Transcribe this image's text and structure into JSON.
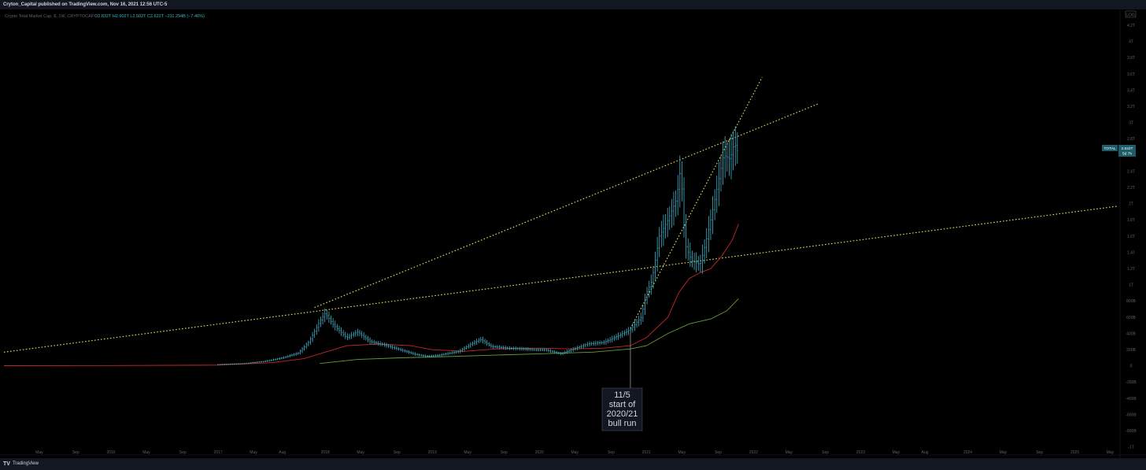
{
  "header": {
    "published": "Cryton_Capital published on TradingView.com, Nov 16, 2021 12:56 UTC-5"
  },
  "legend": {
    "symbol": "Crypto Total Market Cap, $, 1W, CRYPTOCAP",
    "ohlc": "O2.832T  H2.902T  L2.502T  C2.622T  −211.294B (−7.46%)"
  },
  "scale_mode": "LOG",
  "price_badge": {
    "symbol": "TOTAL",
    "price": "2.622T",
    "countdown": "5d 7h"
  },
  "annotation": {
    "lines": [
      "11/5",
      "start of",
      "2020/21",
      "bull run"
    ]
  },
  "footer": {
    "brand": "TradingView",
    "logo_glyph": "TV"
  },
  "colors": {
    "background": "#000000",
    "bar": "#3fb2c9",
    "ma_red": "#c62828",
    "ma_green": "#6b9b37",
    "trendline": "#e7e35a",
    "axis_text": "#5d606b"
  },
  "chart_data": {
    "type": "line",
    "title": "Crypto Total Market Cap, $, 1W, CRYPTOCAP",
    "y_tick_labels": [
      "4.2T",
      "4T",
      "3.8T",
      "3.6T",
      "3.4T",
      "3.2T",
      "3T",
      "2.8T",
      "2.6T",
      "2.4T",
      "2.2T",
      "2T",
      "1.8T",
      "1.6T",
      "1.4T",
      "1.2T",
      "1T",
      "800B",
      "600B",
      "400B",
      "200B",
      "0",
      "-200B",
      "-400B",
      "-600B",
      "-800B",
      "-1T"
    ],
    "y_ticks": [
      4.2,
      4.0,
      3.8,
      3.6,
      3.4,
      3.2,
      3.0,
      2.8,
      2.6,
      2.4,
      2.2,
      2.0,
      1.8,
      1.6,
      1.4,
      1.2,
      1.0,
      0.8,
      0.6,
      0.4,
      0.2,
      0,
      -0.2,
      -0.4,
      -0.6,
      -0.8,
      -1.0
    ],
    "ylim": [
      -1.05,
      4.25
    ],
    "x_tick_labels": [
      "May",
      "Sep",
      "2016",
      "May",
      "Sep",
      "2017",
      "May",
      "Aug",
      "2018",
      "May",
      "Sep",
      "2019",
      "May",
      "Sep",
      "2020",
      "May",
      "Sep",
      "2021",
      "May",
      "Sep",
      "2022",
      "May",
      "Sep",
      "2023",
      "May",
      "Aug",
      "2024",
      "May",
      "Sep",
      "2025",
      "May"
    ],
    "x_ticks": [
      2015.33,
      2015.67,
      2016.0,
      2016.33,
      2016.67,
      2017.0,
      2017.33,
      2017.6,
      2018.0,
      2018.33,
      2018.67,
      2019.0,
      2019.33,
      2019.67,
      2020.0,
      2020.33,
      2020.67,
      2021.0,
      2021.33,
      2021.67,
      2022.0,
      2022.33,
      2022.67,
      2023.0,
      2023.33,
      2023.6,
      2024.0,
      2024.33,
      2024.67,
      2025.0,
      2025.33
    ],
    "xlim": [
      2015.0,
      2025.4
    ],
    "series": [
      {
        "role": "price-close",
        "x": [
          2015.0,
          2016.0,
          2016.5,
          2017.0,
          2017.25,
          2017.45,
          2017.6,
          2017.75,
          2017.85,
          2017.95,
          2018.0,
          2018.08,
          2018.2,
          2018.3,
          2018.42,
          2018.55,
          2018.7,
          2018.85,
          2018.95,
          2019.05,
          2019.25,
          2019.35,
          2019.45,
          2019.55,
          2019.7,
          2019.85,
          2019.95,
          2020.05,
          2020.2,
          2020.3,
          2020.45,
          2020.6,
          2020.75,
          2020.85,
          2020.95,
          2021.0,
          2021.05,
          2021.12,
          2021.2,
          2021.28,
          2021.32,
          2021.36,
          2021.42,
          2021.5,
          2021.55,
          2021.6,
          2021.66,
          2021.72,
          2021.78,
          2021.82,
          2021.86
        ],
        "y": [
          0.005,
          0.007,
          0.01,
          0.018,
          0.03,
          0.06,
          0.1,
          0.16,
          0.3,
          0.55,
          0.65,
          0.5,
          0.35,
          0.42,
          0.3,
          0.26,
          0.2,
          0.14,
          0.12,
          0.13,
          0.18,
          0.26,
          0.33,
          0.24,
          0.22,
          0.21,
          0.2,
          0.2,
          0.15,
          0.2,
          0.27,
          0.29,
          0.38,
          0.45,
          0.6,
          0.9,
          1.05,
          1.6,
          1.8,
          2.05,
          2.45,
          1.5,
          1.3,
          1.25,
          1.5,
          1.8,
          2.2,
          2.6,
          2.55,
          2.75,
          2.62
        ]
      },
      {
        "role": "moving-average-red",
        "x": [
          2015.0,
          2016.0,
          2017.0,
          2017.5,
          2017.8,
          2018.0,
          2018.2,
          2018.5,
          2018.8,
          2019.0,
          2019.3,
          2019.6,
          2020.0,
          2020.3,
          2020.6,
          2020.85,
          2021.0,
          2021.2,
          2021.3,
          2021.4,
          2021.5,
          2021.6,
          2021.7,
          2021.8,
          2021.86
        ],
        "y": [
          0.003,
          0.005,
          0.01,
          0.04,
          0.09,
          0.17,
          0.25,
          0.27,
          0.25,
          0.2,
          0.18,
          0.21,
          0.22,
          0.21,
          0.22,
          0.25,
          0.35,
          0.6,
          0.9,
          1.08,
          1.15,
          1.2,
          1.35,
          1.55,
          1.75
        ]
      },
      {
        "role": "moving-average-green",
        "x": [
          2017.95,
          2018.3,
          2018.7,
          2019.0,
          2019.5,
          2020.0,
          2020.5,
          2020.85,
          2021.0,
          2021.2,
          2021.4,
          2021.6,
          2021.75,
          2021.86
        ],
        "y": [
          0.03,
          0.08,
          0.1,
          0.11,
          0.13,
          0.15,
          0.17,
          0.21,
          0.25,
          0.4,
          0.52,
          0.58,
          0.68,
          0.83
        ]
      },
      {
        "role": "trendline",
        "x": [
          2015.0,
          2025.4
        ],
        "y": [
          0.17,
          1.97
        ]
      },
      {
        "role": "trendline",
        "x": [
          2017.9,
          2022.6
        ],
        "y": [
          0.72,
          3.23
        ]
      },
      {
        "role": "trendline",
        "x": [
          2020.85,
          2022.08
        ],
        "y": [
          0.46,
          3.56
        ]
      }
    ],
    "vertical_marker_x": 2020.85
  }
}
